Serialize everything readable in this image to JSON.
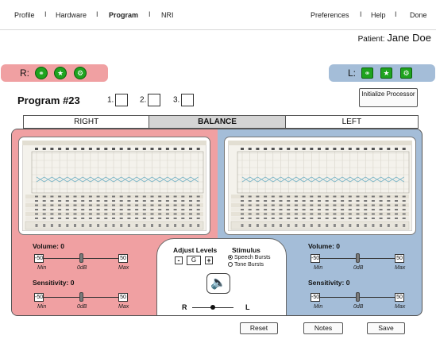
{
  "nav": {
    "left": [
      "Profile",
      "Hardware",
      "Program",
      "NRI"
    ],
    "right": [
      "Preferences",
      "Help",
      "Done"
    ],
    "active": "Program",
    "separator": "I"
  },
  "patient": {
    "label": "Patient:",
    "name": "Jane Doe"
  },
  "remote": {
    "right_label": "R:",
    "left_label": "L:"
  },
  "program": {
    "title": "Program #23",
    "slots": [
      "1.",
      "2.",
      "3."
    ],
    "initialize_label": "Initialize Processor"
  },
  "tabs": [
    {
      "label": "RIGHT"
    },
    {
      "label": "BALANCE"
    },
    {
      "label": "LEFT"
    }
  ],
  "right_ctrl": {
    "volume_label": "Volume: 0",
    "sensitivity_label": "Sensitivity: 0",
    "min_value": "-50",
    "max_value": "50",
    "min_label": "Min",
    "mid_label": "0dB",
    "max_label": "Max",
    "volume_level": 0.5,
    "sensitivity_level": 0.5
  },
  "left_ctrl": {
    "volume_label": "Volume: 0",
    "sensitivity_label": "Sensitivity: 0",
    "min_value": "-50",
    "max_value": "50",
    "min_label": "Min",
    "mid_label": "0dB",
    "max_label": "Max",
    "volume_level": 0.5,
    "sensitivity_level": 0.5
  },
  "center": {
    "adjust_title": "Adjust Levels",
    "minus": "-",
    "level": "G",
    "plus": "+",
    "stimulus_title": "Stimulus",
    "stimulus_options": [
      "Speech Bursts",
      "Tone Bursts"
    ],
    "stimulus_selected": 0,
    "balance_r": "R",
    "balance_l": "L",
    "balance_level": 0.5
  },
  "buttons": {
    "reset": "Reset",
    "notes": "Notes",
    "save": "Save"
  },
  "colors": {
    "right": "#f0a0a2",
    "left": "#a4bdd8",
    "remote_button": "#1fa31f"
  },
  "icons": [
    "ear-icon",
    "star-icon",
    "gear-icon",
    "speaker-icon"
  ]
}
